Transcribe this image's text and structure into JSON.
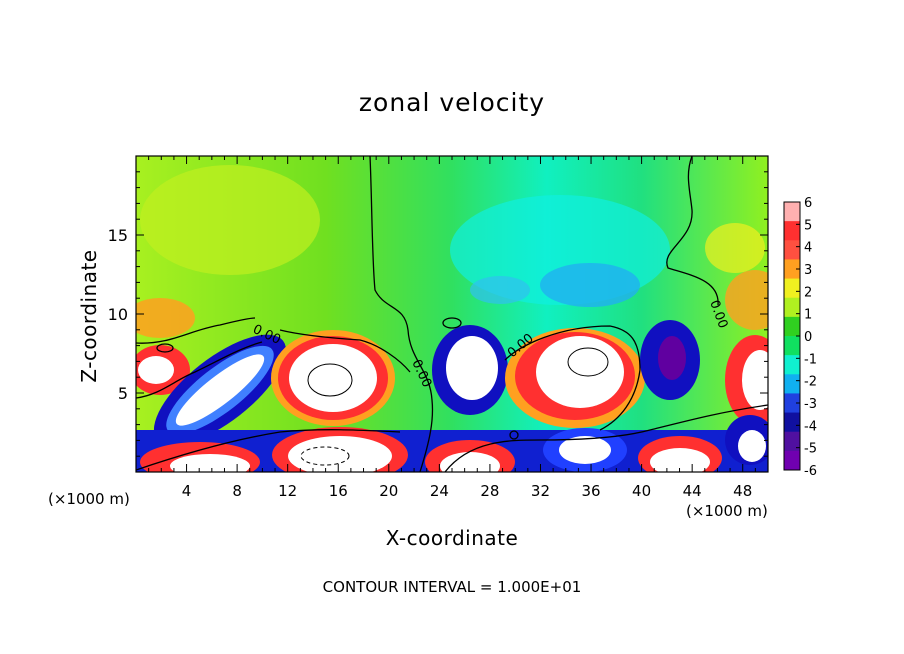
{
  "chart_data": {
    "type": "heatmap",
    "title": "zonal velocity",
    "xlabel": "X-coordinate",
    "ylabel": "Z-coordinate",
    "x_unit_label_left": "(×1000 m)",
    "x_unit_label_right": "(×1000 m)",
    "xlim": [
      0,
      50
    ],
    "ylim": [
      0,
      20
    ],
    "x_ticks": [
      4,
      8,
      12,
      16,
      20,
      24,
      28,
      32,
      36,
      40,
      44,
      48
    ],
    "y_ticks": [
      5,
      10,
      15
    ],
    "colorbar": {
      "ticks": [
        6,
        5,
        4,
        3,
        2,
        1,
        0,
        -1,
        -2,
        -3,
        -4,
        -5,
        -6
      ],
      "colors": [
        "#ffb0b0",
        "#ff3030",
        "#ff5040",
        "#ffa020",
        "#f0f020",
        "#b0f020",
        "#30d020",
        "#10e060",
        "#10f0d0",
        "#10b0f0",
        "#2040e0",
        "#1010a0",
        "#5010a0",
        "#7000b0"
      ]
    },
    "contour_labels": [
      "0.00",
      "0.00",
      "0.00",
      "0.00"
    ],
    "footer": "CONTOUR INTERVAL = 1.000E+01"
  }
}
